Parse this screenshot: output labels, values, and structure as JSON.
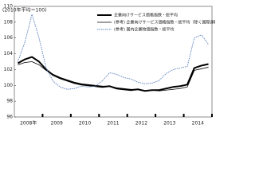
{
  "chart_data": {
    "type": "line",
    "title": "(2010年平均＝100)",
    "categories": [
      null,
      "2008年",
      null,
      null,
      null,
      "2009",
      null,
      null,
      null,
      "2010",
      null,
      null,
      null,
      "2011",
      null,
      null,
      null,
      "2012",
      null,
      null,
      null,
      "2013",
      null,
      null,
      null,
      "2014",
      null,
      null
    ],
    "series": [
      {
        "name": "企業向けサービス価格指数・総平均",
        "color": "#000000",
        "width": 2,
        "values": [
          102.8,
          103.3,
          103.6,
          103.0,
          102.0,
          101.3,
          100.9,
          100.6,
          100.3,
          100.1,
          100.0,
          99.9,
          99.8,
          99.9,
          99.6,
          99.5,
          99.4,
          99.5,
          99.3,
          99.4,
          99.4,
          99.6,
          99.8,
          99.9,
          100.1,
          102.2,
          102.5,
          102.7
        ]
      },
      {
        "name": "(参考) 企業向けサービス価格指数・総平均（除く国際運輸）",
        "color": "#000000",
        "width": 0.8,
        "values": [
          102.6,
          102.9,
          103.0,
          102.6,
          101.9,
          101.4,
          101.0,
          100.7,
          100.4,
          100.2,
          100.1,
          100.0,
          99.9,
          99.9,
          99.7,
          99.6,
          99.5,
          99.5,
          99.3,
          99.4,
          99.3,
          99.4,
          99.5,
          99.6,
          99.8,
          101.9,
          102.1,
          102.3
        ]
      },
      {
        "name": "(参考) 国内企業物価指数・総平均",
        "color": "#5b7fbf",
        "width": 0.9,
        "dash": true,
        "values": [
          103.0,
          105.5,
          109.0,
          106.0,
          102.2,
          100.5,
          99.8,
          99.5,
          99.6,
          99.9,
          99.8,
          99.9,
          100.6,
          101.6,
          101.4,
          101.0,
          100.8,
          100.4,
          100.2,
          100.3,
          100.6,
          101.5,
          102.0,
          102.2,
          102.4,
          106.0,
          106.4,
          105.2
        ]
      }
    ],
    "ylim": [
      96,
      110
    ],
    "yticks": [
      96,
      98,
      100,
      102,
      104,
      106,
      108,
      110
    ]
  }
}
